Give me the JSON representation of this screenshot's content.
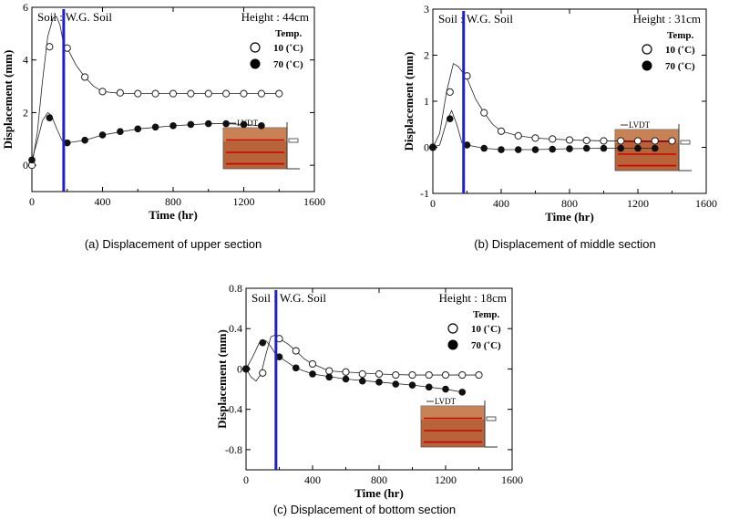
{
  "colors": {
    "marker_line": "#2020c8",
    "axis": "#000000",
    "soil_fill": "#b8643a",
    "soil_fill_light": "#d9a070",
    "sensor_line": "#cc0000"
  },
  "chart_data": [
    {
      "type": "scatter",
      "id": "a",
      "soil_label": "Soil : W.G. Soil",
      "height_label": "Height : 44cm",
      "legend_title": "Temp.",
      "xlabel": "Time (hr)",
      "ylabel": "Displacement (mm)",
      "xlim": [
        0,
        1600
      ],
      "ylim": [
        -1,
        6
      ],
      "xticks": [
        0,
        400,
        800,
        1200,
        1600
      ],
      "yticks": [
        0,
        2,
        4,
        6
      ],
      "marker_time": 180,
      "caption": "(a) Displacement of upper section",
      "inset_label": "LVDT",
      "series": [
        {
          "name": "10 (˚C)",
          "marker": "open",
          "x": [
            0,
            100,
            200,
            300,
            400,
            500,
            600,
            700,
            800,
            900,
            1000,
            1100,
            1200,
            1300,
            1400
          ],
          "y": [
            0.0,
            4.5,
            4.45,
            3.35,
            2.8,
            2.75,
            2.72,
            2.72,
            2.72,
            2.72,
            2.72,
            2.72,
            2.72,
            2.72,
            2.72
          ],
          "curve_x": [
            0,
            30,
            60,
            90,
            120,
            140,
            160,
            180,
            200,
            250,
            300,
            350,
            400,
            500,
            600,
            800,
            1000,
            1200,
            1400
          ],
          "curve_y": [
            0.0,
            1.2,
            3.2,
            4.9,
            5.6,
            5.65,
            5.3,
            4.6,
            4.45,
            3.8,
            3.35,
            3.0,
            2.8,
            2.73,
            2.72,
            2.72,
            2.72,
            2.72,
            2.72
          ]
        },
        {
          "name": "70 (˚C)",
          "marker": "filled",
          "x": [
            0,
            100,
            200,
            300,
            400,
            500,
            600,
            700,
            800,
            900,
            1000,
            1100,
            1200,
            1300
          ],
          "y": [
            0.2,
            1.8,
            0.85,
            0.95,
            1.15,
            1.28,
            1.38,
            1.45,
            1.5,
            1.55,
            1.58,
            1.58,
            1.55,
            1.5
          ],
          "curve_x": [
            0,
            30,
            60,
            90,
            110,
            140,
            170,
            200,
            300,
            400,
            600,
            800,
            1000,
            1100,
            1200,
            1300
          ],
          "curve_y": [
            0.2,
            0.9,
            1.7,
            2.0,
            1.9,
            1.4,
            0.95,
            0.85,
            0.95,
            1.15,
            1.38,
            1.5,
            1.58,
            1.58,
            1.55,
            1.5
          ]
        }
      ]
    },
    {
      "type": "scatter",
      "id": "b",
      "soil_label": "Soil : W.G. Soil",
      "height_label": "Height : 31cm",
      "legend_title": "Temp.",
      "xlabel": "Time (hr)",
      "ylabel": "Displacement (mm)",
      "xlim": [
        0,
        1600
      ],
      "ylim": [
        -1,
        3
      ],
      "xticks": [
        0,
        400,
        800,
        1200,
        1600
      ],
      "yticks": [
        -1,
        0,
        1,
        2,
        3
      ],
      "marker_time": 180,
      "caption": "(b) Displacement of middle section",
      "inset_label": "LVDT",
      "series": [
        {
          "name": "10 (˚C)",
          "marker": "open",
          "x": [
            0,
            100,
            200,
            300,
            400,
            500,
            600,
            700,
            800,
            900,
            1000,
            1100,
            1200,
            1300,
            1400
          ],
          "y": [
            0.0,
            1.2,
            1.55,
            0.75,
            0.35,
            0.25,
            0.2,
            0.18,
            0.16,
            0.15,
            0.14,
            0.14,
            0.14,
            0.14,
            0.14
          ],
          "curve_x": [
            0,
            40,
            80,
            120,
            150,
            180,
            200,
            250,
            300,
            350,
            400,
            500,
            600,
            800,
            1000,
            1200,
            1400
          ],
          "curve_y": [
            0.0,
            0.3,
            1.2,
            1.82,
            1.75,
            1.6,
            1.5,
            1.05,
            0.75,
            0.5,
            0.35,
            0.25,
            0.2,
            0.16,
            0.14,
            0.14,
            0.14
          ]
        },
        {
          "name": "70 (˚C)",
          "marker": "filled",
          "x": [
            0,
            100,
            200,
            300,
            400,
            500,
            600,
            700,
            800,
            900,
            1000,
            1100,
            1200,
            1300
          ],
          "y": [
            0.0,
            0.62,
            0.05,
            -0.02,
            -0.05,
            -0.05,
            -0.05,
            -0.04,
            -0.03,
            -0.02,
            -0.02,
            -0.02,
            -0.02,
            -0.02
          ],
          "curve_x": [
            0,
            40,
            80,
            110,
            140,
            170,
            200,
            300,
            400,
            600,
            800,
            1000,
            1300
          ],
          "curve_y": [
            0.0,
            0.05,
            0.55,
            0.8,
            0.5,
            0.1,
            0.05,
            -0.02,
            -0.05,
            -0.05,
            -0.03,
            -0.02,
            -0.02
          ]
        }
      ]
    },
    {
      "type": "scatter",
      "id": "c",
      "soil_label": "Soil : W.G. Soil",
      "height_label": "Height : 18cm",
      "legend_title": "Temp.",
      "xlabel": "Time (hr)",
      "ylabel": "Displacement (mm)",
      "xlim": [
        0,
        1600
      ],
      "ylim": [
        -1,
        0.8
      ],
      "xticks": [
        0,
        400,
        800,
        1200,
        1600
      ],
      "yticks": [
        -0.8,
        -0.4,
        0,
        0.4,
        0.8
      ],
      "marker_time": 180,
      "caption": "(c) Displacement of bottom section",
      "inset_label": "LVDT",
      "series": [
        {
          "name": "10 (˚C)",
          "marker": "open",
          "x": [
            0,
            100,
            200,
            300,
            400,
            500,
            600,
            700,
            800,
            900,
            1000,
            1100,
            1200,
            1300,
            1400
          ],
          "y": [
            0.0,
            -0.04,
            0.3,
            0.18,
            0.05,
            -0.02,
            -0.03,
            -0.05,
            -0.05,
            -0.06,
            -0.06,
            -0.06,
            -0.06,
            -0.06,
            -0.06
          ],
          "curve_x": [
            0,
            30,
            60,
            90,
            120,
            150,
            180,
            200,
            250,
            300,
            350,
            400,
            500,
            600,
            800,
            1000,
            1200,
            1400
          ],
          "curve_y": [
            0.0,
            -0.08,
            -0.12,
            -0.05,
            0.15,
            0.32,
            0.34,
            0.3,
            0.25,
            0.18,
            0.1,
            0.05,
            -0.02,
            -0.03,
            -0.05,
            -0.06,
            -0.06,
            -0.06
          ]
        },
        {
          "name": "70 (˚C)",
          "marker": "filled",
          "x": [
            0,
            100,
            200,
            300,
            400,
            500,
            600,
            700,
            800,
            900,
            1000,
            1100,
            1200,
            1300
          ],
          "y": [
            0.0,
            0.26,
            0.12,
            0.01,
            -0.05,
            -0.08,
            -0.1,
            -0.12,
            -0.13,
            -0.15,
            -0.16,
            -0.18,
            -0.2,
            -0.23
          ],
          "curve_x": [
            0,
            40,
            80,
            120,
            150,
            180,
            200,
            300,
            400,
            600,
            800,
            1000,
            1200,
            1300
          ],
          "curve_y": [
            0.0,
            0.12,
            0.26,
            0.28,
            0.22,
            0.14,
            0.12,
            0.01,
            -0.05,
            -0.1,
            -0.13,
            -0.16,
            -0.2,
            -0.23
          ]
        }
      ]
    }
  ]
}
